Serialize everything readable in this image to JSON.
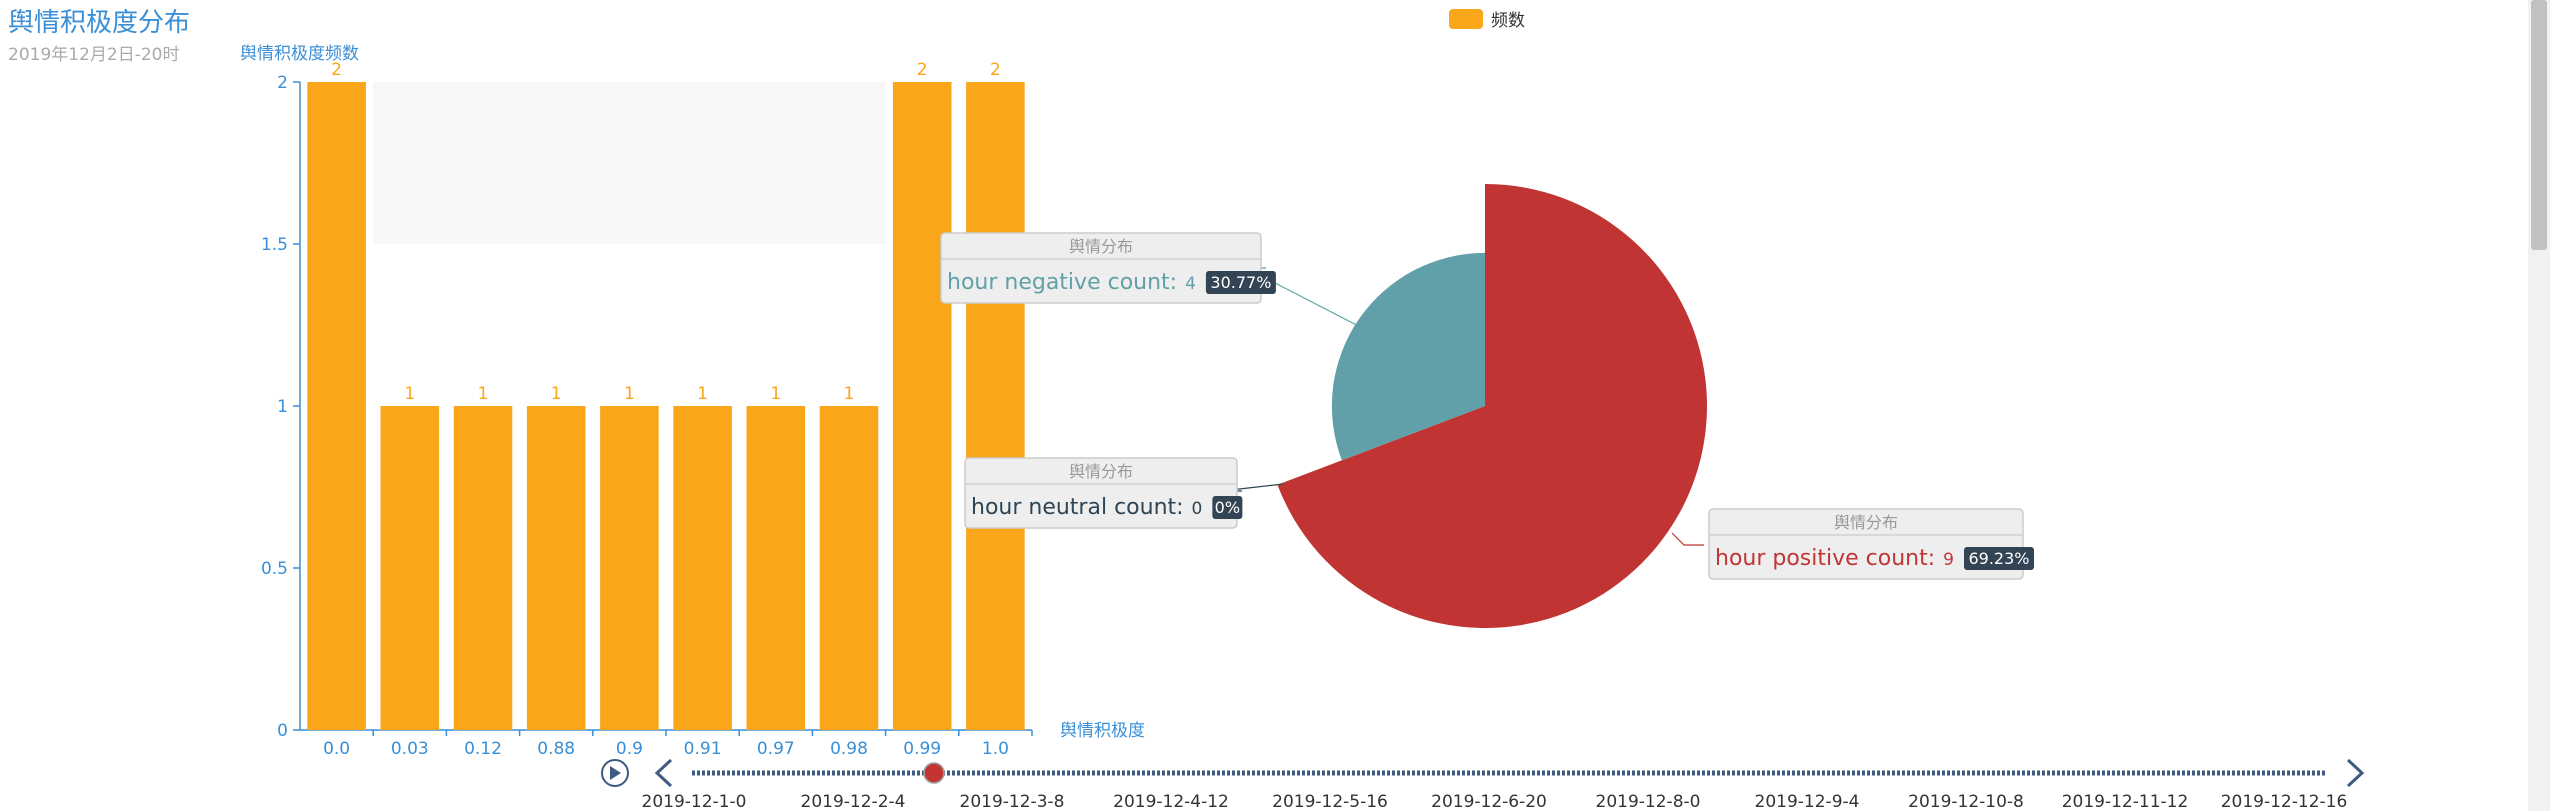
{
  "title": "舆情积极度分布",
  "subtitle": "2019年12月2日-20时",
  "legend": {
    "label": "频数",
    "color": "#f9a61a"
  },
  "colors": {
    "bar": "#f9a61a",
    "axis": "#3a8fd6",
    "positive": "#c03533",
    "negative": "#61a0a8",
    "neutral": "#2f4554",
    "timeline": "#3d5a80",
    "timeline_marker": "#c23531"
  },
  "chart_data": [
    {
      "type": "bar",
      "ylabel": "舆情积极度频数",
      "xlabel": "舆情积极度",
      "categories": [
        "0.0",
        "0.03",
        "0.12",
        "0.88",
        "0.9",
        "0.91",
        "0.97",
        "0.98",
        "0.99",
        "1.0"
      ],
      "values": [
        2,
        1,
        1,
        1,
        1,
        1,
        1,
        1,
        2,
        2
      ],
      "ylim": [
        0,
        2
      ],
      "yticks": [
        "0",
        "0.5",
        "1",
        "1.5",
        "2"
      ],
      "grid": false
    },
    {
      "type": "pie",
      "series_name": "舆情分布",
      "slices": [
        {
          "label": "hour negative count",
          "value": 4,
          "percent": "30.77%",
          "color": "#61a0a8"
        },
        {
          "label": "hour neutral count",
          "value": 0,
          "percent": "0%",
          "color": "#2f4554"
        },
        {
          "label": "hour positive count",
          "value": 9,
          "percent": "69.23%",
          "color": "#c03533"
        }
      ]
    }
  ],
  "timeline": {
    "labels": [
      "2019-12-1-0",
      "2019-12-2-4",
      "2019-12-3-8",
      "2019-12-4-12",
      "2019-12-5-16",
      "2019-12-6-20",
      "2019-12-8-0",
      "2019-12-9-4",
      "2019-12-10-8",
      "2019-12-11-12",
      "2019-12-12-16"
    ],
    "current_fraction": 0.148
  }
}
